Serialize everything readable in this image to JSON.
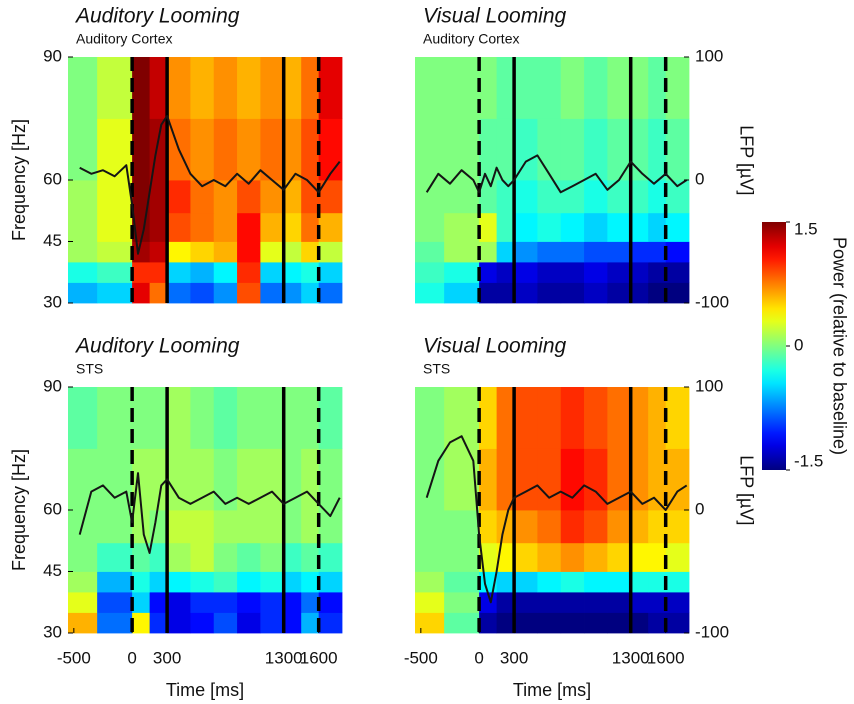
{
  "chart_data": [
    {
      "type": "heatmap",
      "title": "Auditory Looming",
      "subtitle": "Auditory Cortex",
      "ylabel": "Frequency [Hz]",
      "xlim": [
        -550,
        1800
      ],
      "ylim": [
        30,
        90
      ],
      "yticks": [
        30,
        45,
        60,
        90
      ],
      "y2lim": [
        -100,
        100
      ],
      "xbins": [
        -550,
        -300,
        0,
        150,
        300,
        500,
        700,
        900,
        1100,
        1300,
        1450,
        1600,
        1800
      ],
      "ybins": [
        30,
        35,
        40,
        45,
        52,
        60,
        75,
        90
      ],
      "z": [
        [
          -0.6,
          -0.5,
          1.2,
          0.8,
          -0.8,
          -0.9,
          -0.7,
          0.9,
          -0.8,
          -0.7,
          -0.5,
          -0.8
        ],
        [
          -0.3,
          -0.2,
          1.0,
          1.0,
          -0.5,
          -0.6,
          -0.4,
          1.0,
          -0.5,
          -0.4,
          -0.3,
          -0.5
        ],
        [
          0.1,
          0.2,
          1.4,
          1.3,
          0.4,
          0.5,
          0.6,
          1.1,
          0.3,
          0.2,
          0.5,
          0.2
        ],
        [
          0.1,
          0.3,
          1.5,
          1.4,
          0.9,
          0.8,
          0.7,
          1.1,
          0.6,
          0.5,
          0.8,
          0.6
        ],
        [
          0.1,
          0.3,
          1.5,
          1.4,
          1.0,
          0.8,
          0.7,
          0.9,
          0.7,
          0.6,
          0.9,
          0.9
        ],
        [
          0.0,
          0.3,
          1.5,
          1.4,
          0.8,
          0.7,
          0.8,
          0.7,
          0.8,
          0.7,
          0.9,
          1.1
        ],
        [
          0.0,
          0.2,
          1.5,
          1.3,
          0.7,
          0.6,
          0.7,
          0.6,
          0.7,
          0.6,
          0.8,
          1.2
        ]
      ],
      "events": [
        {
          "value": 0,
          "style": "dashed"
        },
        {
          "value": 300,
          "style": "solid"
        },
        {
          "value": 1300,
          "style": "solid"
        },
        {
          "value": 1600,
          "style": "dashed"
        }
      ],
      "x": [
        -450,
        -350,
        -250,
        -150,
        -50,
        0,
        50,
        100,
        150,
        200,
        250,
        300,
        400,
        500,
        600,
        700,
        800,
        900,
        1000,
        1100,
        1200,
        1300,
        1400,
        1500,
        1600,
        1700,
        1780
      ],
      "series": [
        {
          "color": "#151515",
          "axis": "y2",
          "values": [
            10,
            5,
            8,
            3,
            12,
            -20,
            -60,
            -40,
            -10,
            20,
            45,
            52,
            25,
            5,
            -5,
            0,
            -5,
            5,
            -3,
            8,
            0,
            -8,
            5,
            0,
            -10,
            5,
            15
          ]
        }
      ]
    },
    {
      "type": "heatmap",
      "title": "Visual Looming",
      "subtitle": "Auditory Cortex",
      "y2label": "LFP [µV]",
      "xlim": [
        -550,
        1800
      ],
      "ylim": [
        30,
        90
      ],
      "y2lim": [
        -100,
        100
      ],
      "y2ticks": [
        -100,
        0,
        100
      ],
      "xbins": [
        -550,
        -300,
        0,
        150,
        300,
        500,
        700,
        900,
        1100,
        1300,
        1450,
        1600,
        1800
      ],
      "ybins": [
        30,
        35,
        40,
        45,
        52,
        60,
        75,
        90
      ],
      "z": [
        [
          -0.3,
          -0.5,
          -1.4,
          -1.4,
          -1.3,
          -1.4,
          -1.4,
          -1.3,
          -1.4,
          -1.4,
          -1.5,
          -1.5
        ],
        [
          -0.2,
          -0.3,
          -1.2,
          -1.3,
          -1.2,
          -1.3,
          -1.3,
          -1.2,
          -1.3,
          -1.3,
          -1.4,
          -1.4
        ],
        [
          -0.1,
          0.1,
          0.1,
          -0.5,
          -0.7,
          -0.8,
          -0.8,
          -0.9,
          -0.9,
          -1.0,
          -1.0,
          -1.1
        ],
        [
          0.0,
          0.1,
          0.3,
          -0.2,
          -0.4,
          -0.3,
          -0.4,
          -0.5,
          -0.4,
          -0.4,
          -0.5,
          -0.4
        ],
        [
          0.0,
          0.0,
          -0.1,
          -0.2,
          -0.3,
          -0.2,
          -0.2,
          -0.3,
          -0.2,
          -0.2,
          -0.3,
          -0.2
        ],
        [
          0.0,
          0.0,
          -0.1,
          -0.1,
          -0.2,
          -0.1,
          -0.1,
          -0.2,
          -0.1,
          -0.1,
          -0.2,
          -0.1
        ],
        [
          0.0,
          0.0,
          0.0,
          -0.1,
          -0.1,
          -0.1,
          0.0,
          -0.1,
          0.0,
          0.0,
          -0.1,
          0.0
        ]
      ],
      "events": [
        {
          "value": 0,
          "style": "dashed"
        },
        {
          "value": 300,
          "style": "solid"
        },
        {
          "value": 1300,
          "style": "solid"
        },
        {
          "value": 1600,
          "style": "dashed"
        }
      ],
      "x": [
        -450,
        -350,
        -250,
        -150,
        -50,
        0,
        50,
        100,
        150,
        200,
        250,
        300,
        400,
        500,
        600,
        700,
        800,
        900,
        1000,
        1100,
        1200,
        1300,
        1400,
        1500,
        1600,
        1700,
        1780
      ],
      "series": [
        {
          "color": "#151515",
          "axis": "y2",
          "values": [
            -10,
            5,
            -3,
            8,
            0,
            -10,
            5,
            -5,
            10,
            0,
            -5,
            0,
            15,
            20,
            5,
            -10,
            -5,
            0,
            5,
            -8,
            0,
            15,
            5,
            -3,
            5,
            -5,
            0
          ]
        }
      ]
    },
    {
      "type": "heatmap",
      "title": "Auditory Looming",
      "subtitle": "STS",
      "ylabel": "Frequency [Hz]",
      "xlabel": "Time [ms]",
      "xlim": [
        -550,
        1800
      ],
      "xticks": [
        -500,
        0,
        300,
        1300,
        1600
      ],
      "ylim": [
        30,
        90
      ],
      "yticks": [
        30,
        45,
        60,
        90
      ],
      "y2lim": [
        -100,
        100
      ],
      "xbins": [
        -550,
        -300,
        0,
        150,
        300,
        500,
        700,
        900,
        1100,
        1300,
        1450,
        1600,
        1800
      ],
      "ybins": [
        30,
        35,
        40,
        45,
        52,
        60,
        75,
        90
      ],
      "z": [
        [
          0.6,
          -0.8,
          0.4,
          -1.0,
          -1.2,
          -1.1,
          -0.9,
          -1.2,
          -1.0,
          -1.1,
          -0.6,
          -1.0
        ],
        [
          0.3,
          -0.9,
          -0.5,
          -1.1,
          -1.2,
          -1.0,
          -1.0,
          -1.1,
          -1.0,
          -1.1,
          -0.8,
          -1.1
        ],
        [
          0.1,
          -0.6,
          -0.3,
          -0.5,
          -0.4,
          -0.3,
          -0.2,
          -0.4,
          -0.3,
          -0.5,
          -0.4,
          -0.5
        ],
        [
          0.0,
          -0.2,
          -0.1,
          -0.2,
          0.1,
          0.2,
          0.0,
          -0.1,
          0.0,
          -0.2,
          -0.1,
          -0.2
        ],
        [
          0.0,
          0.0,
          0.1,
          0.0,
          0.2,
          0.2,
          0.1,
          0.1,
          0.1,
          0.0,
          0.1,
          0.0
        ],
        [
          0.0,
          0.0,
          0.1,
          0.1,
          0.1,
          0.1,
          0.0,
          0.1,
          0.1,
          0.0,
          0.1,
          0.0
        ],
        [
          -0.1,
          0.0,
          0.0,
          0.0,
          0.1,
          0.0,
          -0.1,
          0.0,
          0.0,
          0.0,
          0.0,
          -0.1
        ]
      ],
      "events": [
        {
          "value": 0,
          "style": "dashed"
        },
        {
          "value": 300,
          "style": "solid"
        },
        {
          "value": 1300,
          "style": "solid"
        },
        {
          "value": 1600,
          "style": "dashed"
        }
      ],
      "x": [
        -450,
        -350,
        -250,
        -150,
        -50,
        0,
        50,
        100,
        150,
        200,
        250,
        300,
        400,
        500,
        600,
        700,
        800,
        900,
        1000,
        1100,
        1200,
        1300,
        1400,
        1500,
        1600,
        1700,
        1780
      ],
      "series": [
        {
          "color": "#151515",
          "axis": "y2",
          "values": [
            -20,
            15,
            20,
            10,
            15,
            -10,
            30,
            -20,
            -35,
            -10,
            20,
            25,
            10,
            5,
            10,
            15,
            5,
            10,
            5,
            10,
            15,
            5,
            10,
            15,
            5,
            -5,
            10
          ]
        }
      ]
    },
    {
      "type": "heatmap",
      "title": "Visual Looming",
      "subtitle": "STS",
      "xlabel": "Time [ms]",
      "y2label": "LFP [µV]",
      "xlim": [
        -550,
        1800
      ],
      "xticks": [
        -500,
        0,
        300,
        1300,
        1600
      ],
      "ylim": [
        30,
        90
      ],
      "y2lim": [
        -100,
        100
      ],
      "y2ticks": [
        -100,
        0,
        100
      ],
      "xbins": [
        -550,
        -300,
        0,
        150,
        300,
        500,
        700,
        900,
        1100,
        1300,
        1450,
        1600,
        1800
      ],
      "ybins": [
        30,
        35,
        40,
        45,
        52,
        60,
        75,
        90
      ],
      "z": [
        [
          0.5,
          -0.1,
          -1.4,
          -1.5,
          -1.5,
          -1.5,
          -1.5,
          -1.5,
          -1.5,
          -1.5,
          -1.4,
          -1.4
        ],
        [
          0.3,
          0.0,
          -1.2,
          -1.4,
          -1.4,
          -1.4,
          -1.4,
          -1.4,
          -1.4,
          -1.3,
          -1.3,
          -1.3
        ],
        [
          0.1,
          -0.1,
          -0.4,
          -0.5,
          -0.5,
          -0.4,
          -0.3,
          -0.4,
          -0.4,
          -0.3,
          -0.3,
          -0.3
        ],
        [
          0.0,
          0.0,
          0.3,
          0.4,
          0.5,
          0.6,
          0.7,
          0.6,
          0.5,
          0.4,
          0.4,
          0.3
        ],
        [
          0.0,
          0.0,
          0.5,
          0.6,
          0.7,
          0.8,
          1.0,
          0.9,
          0.7,
          0.6,
          0.5,
          0.5
        ],
        [
          0.0,
          0.1,
          0.6,
          0.8,
          0.9,
          0.9,
          1.1,
          1.0,
          0.8,
          0.7,
          0.6,
          0.6
        ],
        [
          0.0,
          0.1,
          0.5,
          0.8,
          0.9,
          0.9,
          1.0,
          0.9,
          0.8,
          0.7,
          0.6,
          0.5
        ]
      ],
      "events": [
        {
          "value": 0,
          "style": "dashed"
        },
        {
          "value": 300,
          "style": "solid"
        },
        {
          "value": 1300,
          "style": "solid"
        },
        {
          "value": 1600,
          "style": "dashed"
        }
      ],
      "x": [
        -450,
        -350,
        -250,
        -150,
        -50,
        0,
        50,
        100,
        150,
        200,
        250,
        300,
        400,
        500,
        600,
        700,
        800,
        900,
        1000,
        1100,
        1200,
        1300,
        1400,
        1500,
        1600,
        1700,
        1780
      ],
      "series": [
        {
          "color": "#151515",
          "axis": "y2",
          "values": [
            10,
            40,
            55,
            60,
            40,
            -20,
            -60,
            -75,
            -50,
            -20,
            0,
            10,
            15,
            20,
            10,
            15,
            10,
            20,
            15,
            5,
            10,
            15,
            5,
            10,
            0,
            15,
            20
          ]
        }
      ]
    }
  ],
  "colorbar": {
    "label": "Power (relative to baseline)",
    "colormap": "jet",
    "lim": [
      -1.5,
      1.5
    ],
    "ticks": [
      1.5,
      0,
      -1.5
    ]
  }
}
